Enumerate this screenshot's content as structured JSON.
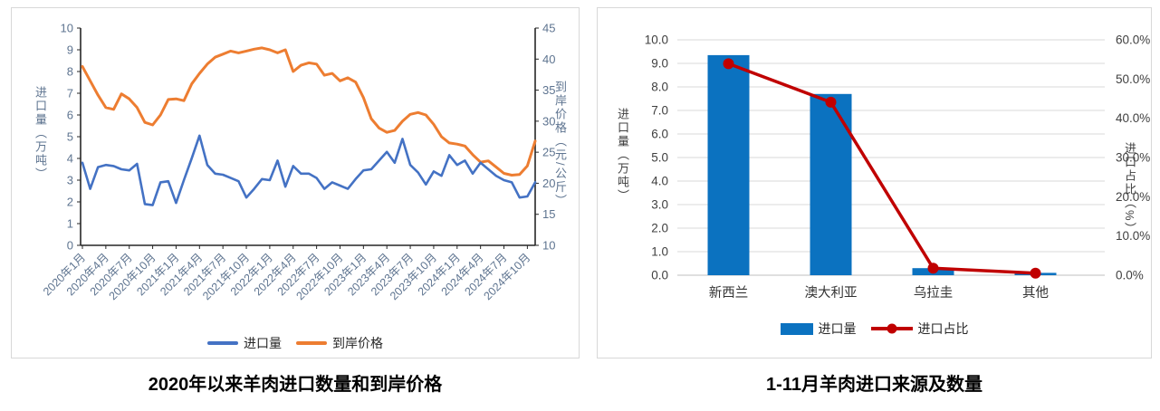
{
  "titles": {
    "left": "2020年以来羊肉进口数量和到岸价格",
    "right": "1-11月羊肉进口来源及数量"
  },
  "chart_data": [
    {
      "type": "line",
      "title": "2020年以来羊肉进口数量和到岸价格",
      "x_tick_labels": [
        "2020年1月",
        "2020年4月",
        "2020年7月",
        "2020年10月",
        "2021年1月",
        "2021年4月",
        "2021年7月",
        "2021年10月",
        "2022年1月",
        "2022年4月",
        "2022年7月",
        "2022年10月",
        "2023年1月",
        "2023年4月",
        "2023年7月",
        "2023年10月",
        "2024年1月",
        "2024年4月",
        "2024年7月",
        "2024年10月"
      ],
      "x_months_span": "2020-01 to 2024-11",
      "y_left": {
        "label": "进口量（万吨）",
        "min": 0,
        "max": 10,
        "step": 1,
        "tick_labels": [
          "0",
          "1",
          "2",
          "3",
          "4",
          "5",
          "6",
          "7",
          "8",
          "9",
          "10"
        ]
      },
      "y_right": {
        "label": "到岸价格（元/公斤）",
        "min": 10,
        "max": 45,
        "step": 5,
        "tick_labels": [
          "10",
          "15",
          "20",
          "25",
          "30",
          "35",
          "40",
          "45"
        ]
      },
      "grid": false,
      "legend_position": "bottom",
      "series": [
        {
          "name": "进口量",
          "axis": "left",
          "color": "#4472c4",
          "values": [
            3.8,
            2.6,
            3.6,
            3.7,
            3.65,
            3.5,
            3.45,
            3.75,
            1.9,
            1.85,
            2.9,
            2.95,
            1.95,
            3.0,
            4.0,
            5.05,
            3.7,
            3.3,
            3.25,
            3.1,
            2.95,
            2.2,
            2.6,
            3.05,
            3.0,
            3.9,
            2.7,
            3.65,
            3.3,
            3.3,
            3.1,
            2.6,
            2.9,
            2.75,
            2.6,
            3.05,
            3.45,
            3.5,
            3.9,
            4.3,
            3.8,
            4.9,
            3.7,
            3.35,
            2.8,
            3.4,
            3.2,
            4.15,
            3.7,
            3.9,
            3.3,
            3.8,
            3.5,
            3.2,
            3.0,
            2.9,
            2.2,
            2.25,
            2.9
          ]
        },
        {
          "name": "到岸价格",
          "axis": "right",
          "color": "#ed7d31",
          "values": [
            38.8,
            36.5,
            34.2,
            32.2,
            31.9,
            34.4,
            33.6,
            32.2,
            29.8,
            29.4,
            31.0,
            33.5,
            33.6,
            33.3,
            36.0,
            37.7,
            39.2,
            40.3,
            40.8,
            41.3,
            41.0,
            41.3,
            41.6,
            41.8,
            41.5,
            41.0,
            41.5,
            38.0,
            39.0,
            39.4,
            39.2,
            37.4,
            37.7,
            36.5,
            37.0,
            36.3,
            33.8,
            30.4,
            28.9,
            28.2,
            28.5,
            30.0,
            31.1,
            31.4,
            31.0,
            29.5,
            27.5,
            26.5,
            26.3,
            26.0,
            24.6,
            23.4,
            23.6,
            22.6,
            21.6,
            21.3,
            21.4,
            22.8,
            26.8
          ]
        }
      ]
    },
    {
      "type": "bar+line",
      "title": "1-11月羊肉进口来源及数量",
      "categories": [
        "新西兰",
        "澳大利亚",
        "乌拉圭",
        "其他"
      ],
      "y_left": {
        "label": "进口量（万吨）",
        "min": 0,
        "max": 10,
        "step": 1,
        "tick_labels": [
          "0.0",
          "1.0",
          "2.0",
          "3.0",
          "4.0",
          "5.0",
          "6.0",
          "7.0",
          "8.0",
          "9.0",
          "10.0"
        ]
      },
      "y_right": {
        "label": "进口占比（%）",
        "min": 0,
        "max": 60,
        "step": 10,
        "tick_labels": [
          "0.0%",
          "10.0%",
          "20.0%",
          "30.0%",
          "40.0%",
          "50.0%",
          "60.0%"
        ]
      },
      "grid": true,
      "legend_position": "bottom",
      "series": [
        {
          "name": "进口量",
          "type": "bar",
          "axis": "left",
          "color": "#0b72c0",
          "values": [
            9.35,
            7.7,
            0.3,
            0.1
          ]
        },
        {
          "name": "进口占比",
          "type": "line",
          "axis": "right",
          "color": "#c00000",
          "values": [
            53.9,
            44.1,
            1.8,
            0.5
          ]
        }
      ]
    }
  ]
}
